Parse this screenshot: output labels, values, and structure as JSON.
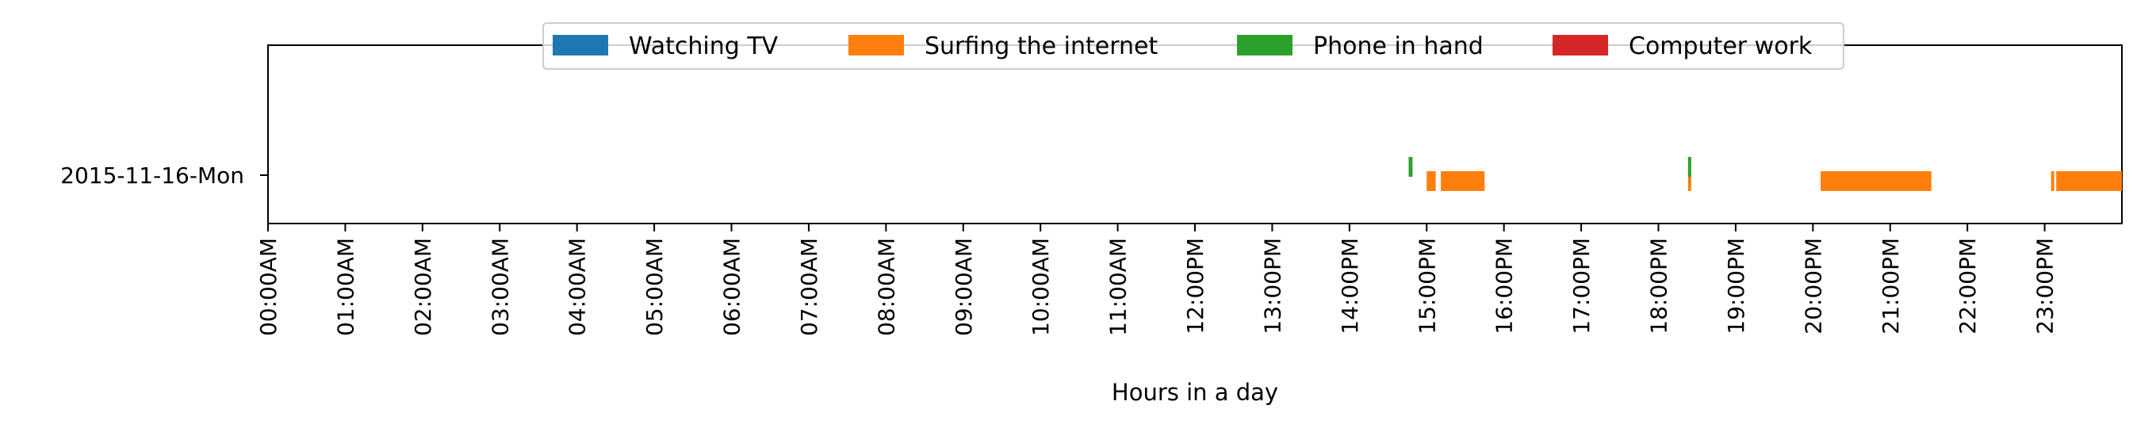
{
  "chart_data": {
    "type": "timeline",
    "title": "",
    "xlabel": "Hours in a day",
    "ylabel": "",
    "xlim": [
      "00:00AM",
      "24:00"
    ],
    "grid": false,
    "legend_placement": "top-center",
    "categories": [
      "2015-11-16-Mon"
    ],
    "x_tick_labels": [
      "00:00AM",
      "01:00AM",
      "02:00AM",
      "03:00AM",
      "04:00AM",
      "05:00AM",
      "06:00AM",
      "07:00AM",
      "08:00AM",
      "09:00AM",
      "10:00AM",
      "11:00AM",
      "12:00PM",
      "13:00PM",
      "14:00PM",
      "15:00PM",
      "16:00PM",
      "17:00PM",
      "18:00PM",
      "19:00PM",
      "20:00PM",
      "21:00PM",
      "22:00PM",
      "23:00PM"
    ],
    "series": [
      {
        "name": "Watching TV",
        "color": "#1f77b4",
        "lane": 0,
        "segments": []
      },
      {
        "name": "Surfing the internet",
        "color": "#ff7f0e",
        "lane": 1,
        "segments": [
          {
            "start": "15:00",
            "end": "15:07"
          },
          {
            "start": "15:11",
            "end": "15:45"
          },
          {
            "start": "18:23",
            "end": "18:25"
          },
          {
            "start": "20:06",
            "end": "21:32"
          },
          {
            "start": "23:05",
            "end": "23:07"
          },
          {
            "start": "23:09",
            "end": "24:00"
          }
        ]
      },
      {
        "name": "Phone in hand",
        "color": "#2ca02c",
        "lane": 0,
        "segments": [
          {
            "start": "14:46",
            "end": "14:49"
          },
          {
            "start": "18:23",
            "end": "18:25"
          }
        ]
      },
      {
        "name": "Computer work",
        "color": "#d62728",
        "lane": 1,
        "segments": []
      }
    ]
  }
}
